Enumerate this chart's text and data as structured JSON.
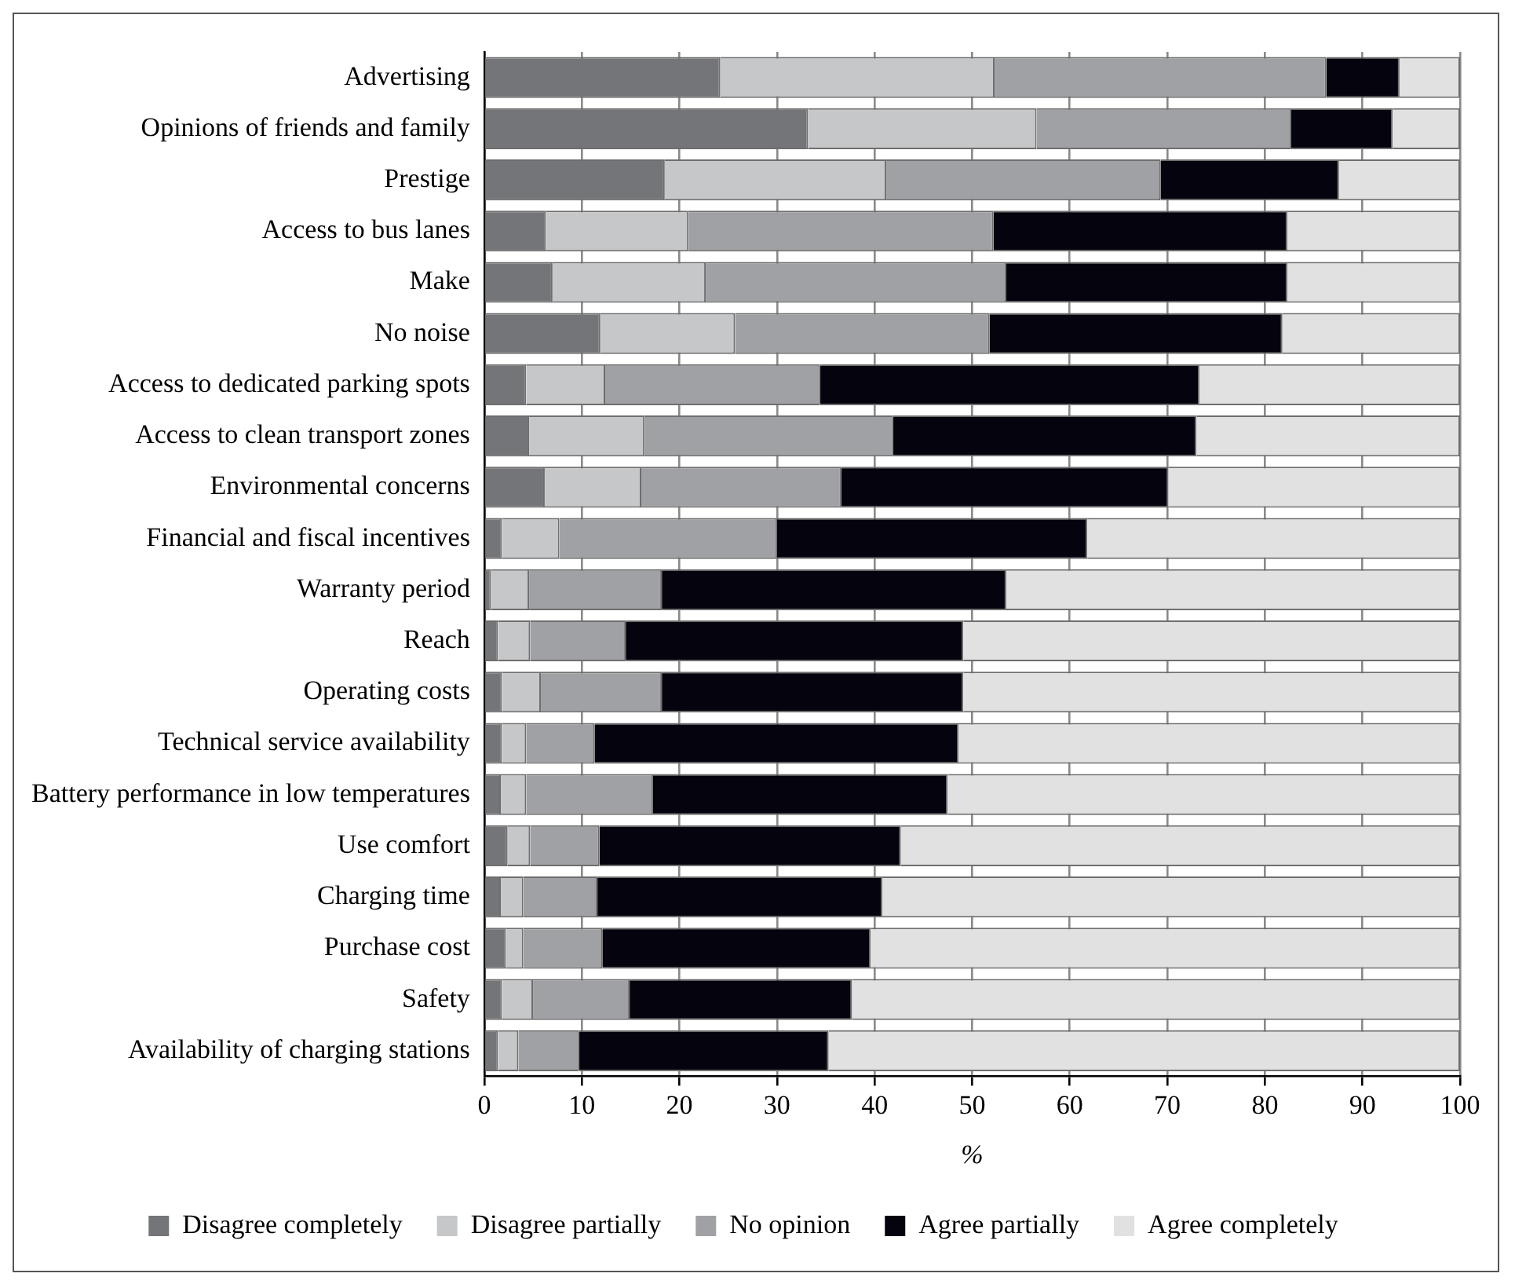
{
  "chart_data": {
    "type": "bar",
    "orientation": "horizontal",
    "stacked": true,
    "xlabel": "%",
    "categories": [
      "Advertising",
      "Opinions of friends and family",
      "Prestige",
      "Access to bus lanes",
      "Make",
      "No noise",
      "Access to dedicated parking spots",
      "Access to clean transport zones",
      "Environmental concerns",
      "Financial and fiscal incentives",
      "Warranty period",
      "Reach",
      "Operating costs",
      "Technical service availability",
      "Battery performance in low temperatures",
      "Use comfort",
      "Charging time",
      "Purchase cost",
      "Safety",
      "Availability of charging stations"
    ],
    "series": [
      {
        "name": "Disagree completely",
        "color": "#747578",
        "values": [
          24.2,
          33.2,
          18.5,
          6.3,
          7.0,
          11.9,
          4.3,
          4.6,
          6.2,
          1.8,
          0.7,
          1.4,
          1.8,
          1.8,
          1.7,
          2.4,
          1.7,
          2.2,
          1.8,
          1.4
        ]
      },
      {
        "name": "Disagree partially",
        "color": "#c6c7c9",
        "values": [
          28.1,
          23.4,
          22.7,
          14.6,
          15.7,
          13.8,
          8.1,
          11.8,
          9.9,
          5.9,
          3.9,
          3.3,
          4.0,
          2.5,
          2.6,
          2.3,
          2.3,
          1.8,
          3.2,
          2.1
        ]
      },
      {
        "name": "No opinion",
        "color": "#a0a1a4",
        "values": [
          34.0,
          26.1,
          28.1,
          31.3,
          30.8,
          26.1,
          22.0,
          25.5,
          20.5,
          22.3,
          13.6,
          9.8,
          12.4,
          7.0,
          13.0,
          7.1,
          7.6,
          8.1,
          9.9,
          6.2
        ]
      },
      {
        "name": "Agree partially",
        "color": "#05030d",
        "values": [
          7.5,
          10.4,
          18.3,
          30.1,
          28.8,
          30.0,
          38.9,
          31.1,
          33.5,
          31.8,
          35.3,
          34.6,
          30.9,
          37.3,
          30.2,
          30.9,
          29.2,
          27.5,
          22.8,
          25.6
        ]
      },
      {
        "name": "Agree completely",
        "color": "#e1e1e1",
        "values": [
          6.2,
          6.9,
          12.4,
          17.7,
          17.7,
          18.2,
          26.7,
          27.0,
          29.9,
          38.2,
          46.5,
          50.9,
          50.9,
          51.4,
          52.5,
          57.3,
          59.2,
          60.4,
          62.3,
          64.7
        ]
      }
    ],
    "xlim": [
      0,
      100
    ],
    "xticks": [
      0,
      10,
      20,
      30,
      40,
      50,
      60,
      70,
      80,
      90,
      100
    ],
    "grid": "x",
    "legend": "bottom"
  }
}
